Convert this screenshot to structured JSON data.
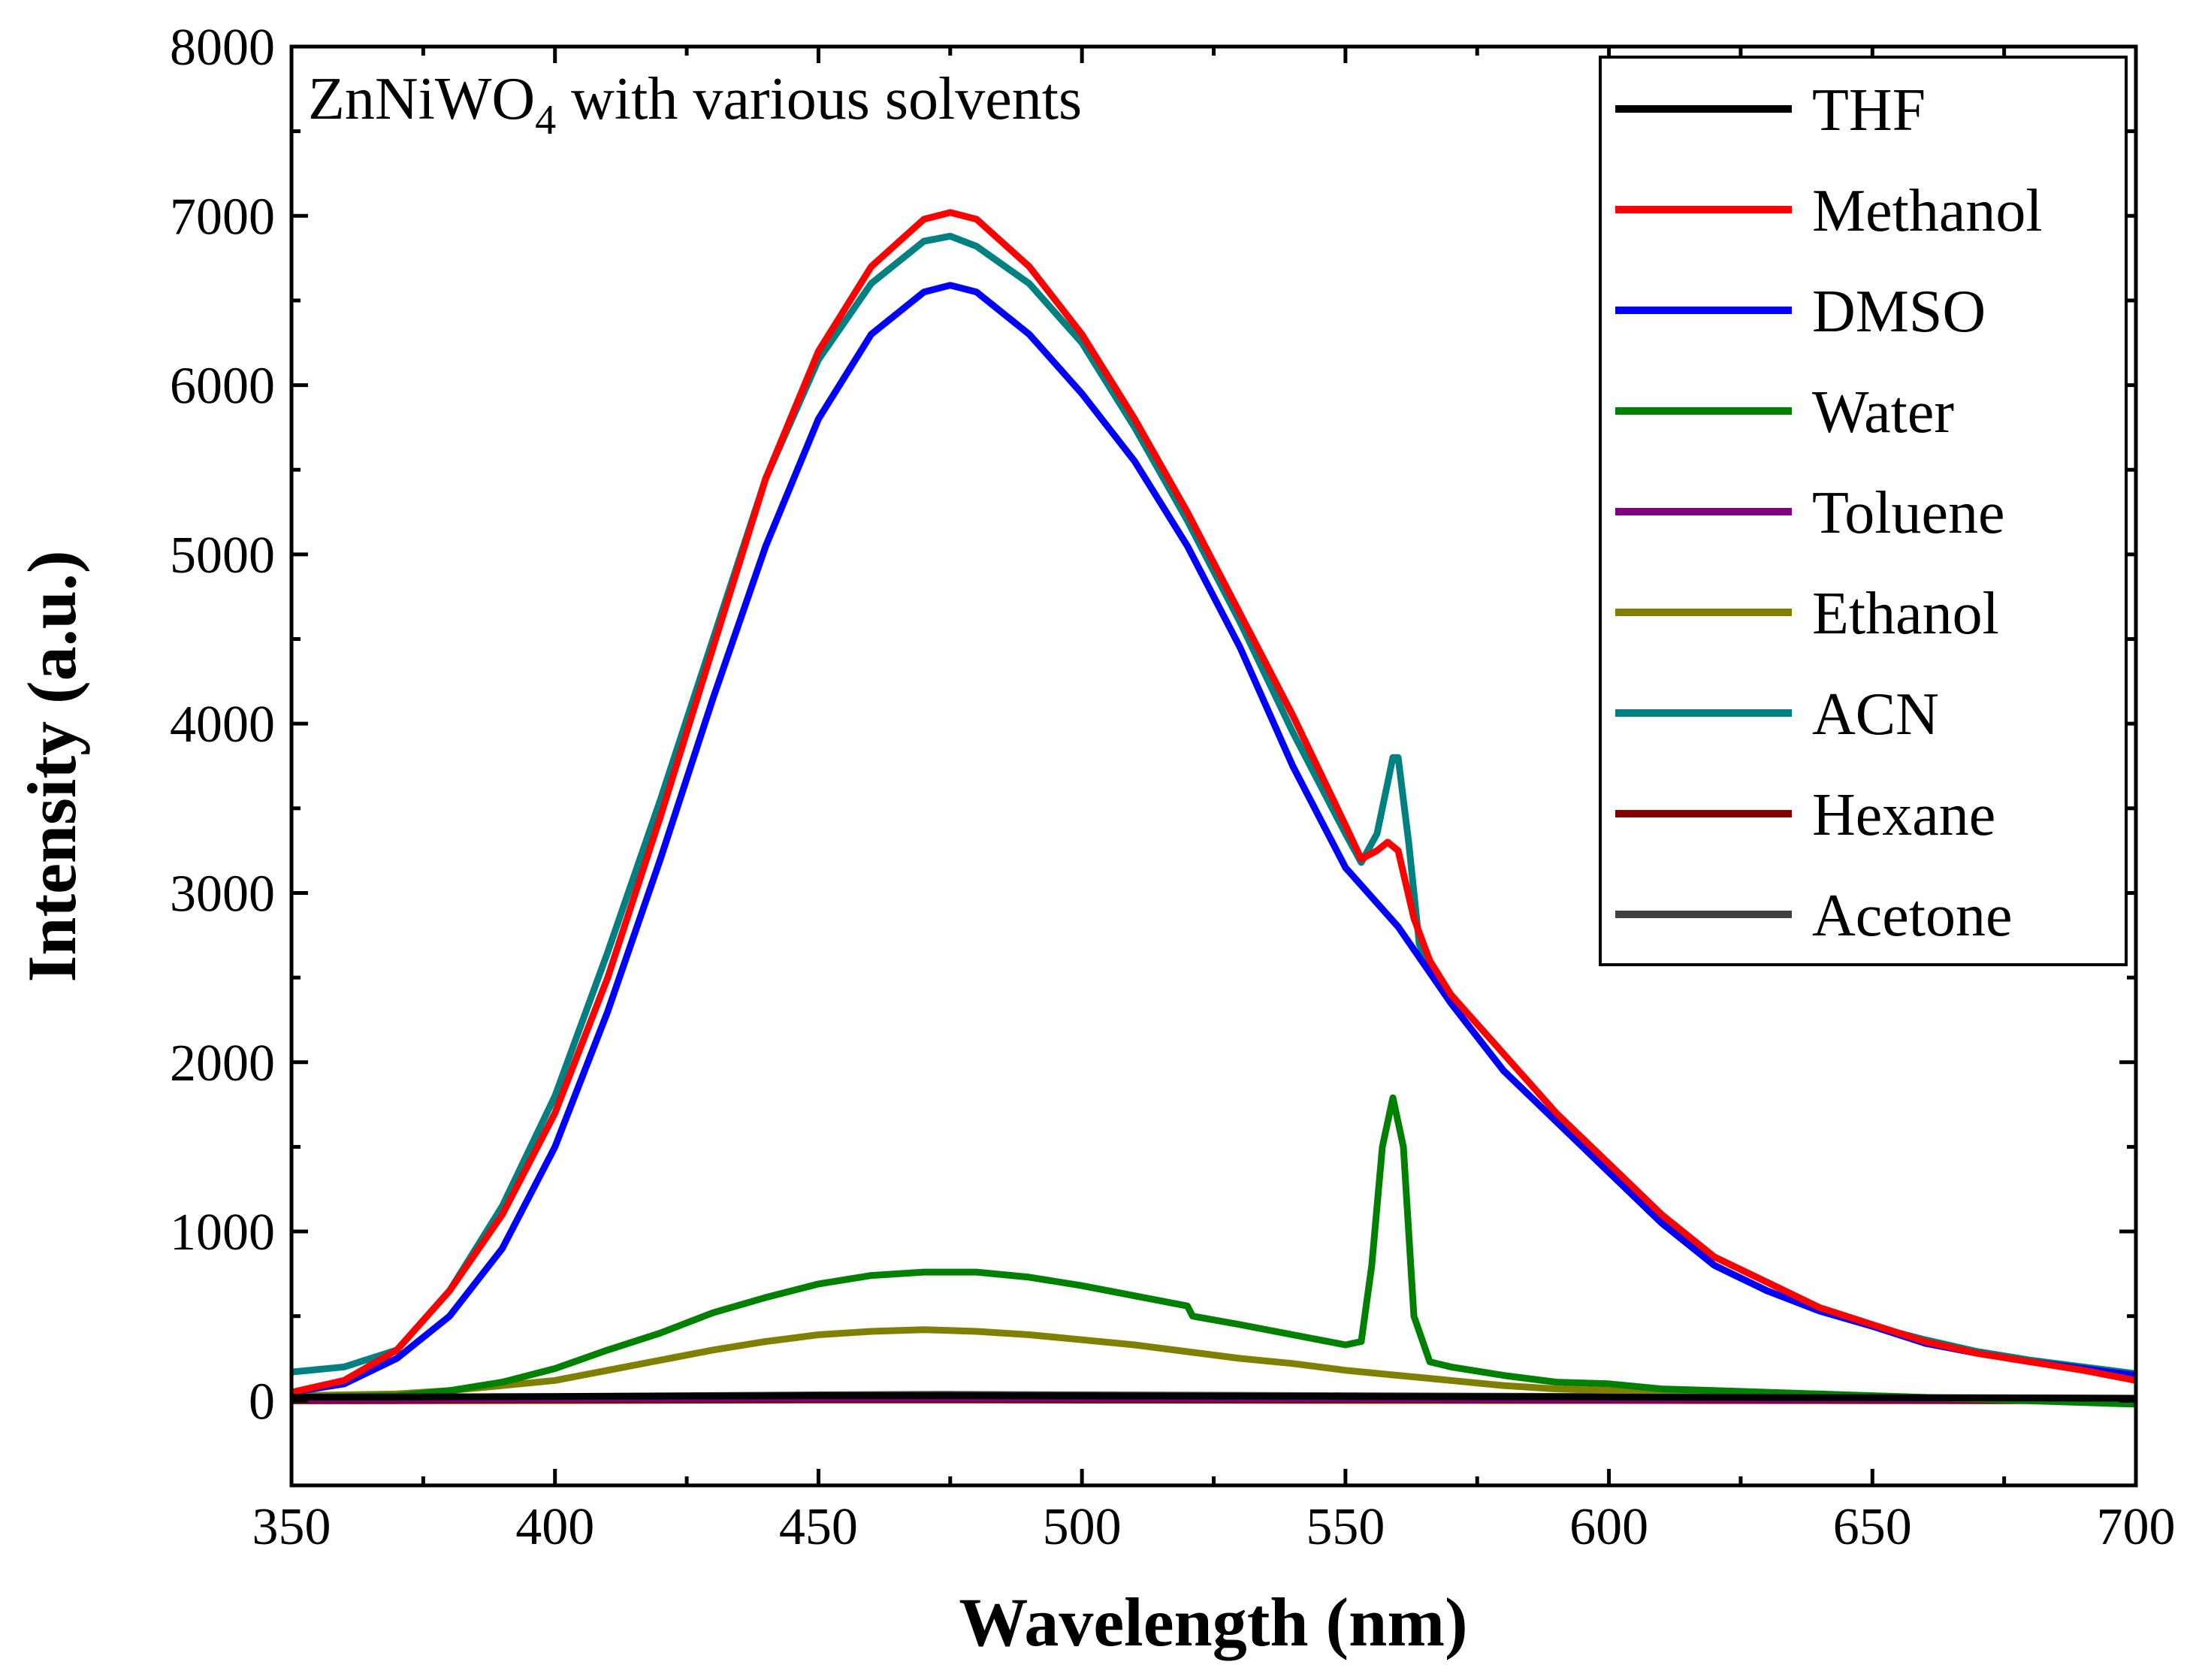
{
  "chart_data": {
    "type": "line",
    "title": "",
    "annotation": {
      "text": "ZnNiWO",
      "subscript": "4",
      "suffix": " with various solvents"
    },
    "xlabel": "Wavelength (nm)",
    "ylabel": "Intensity (a.u.)",
    "xlim": [
      350,
      700
    ],
    "ylim": [
      -500,
      8000
    ],
    "xticks": [
      350,
      400,
      450,
      500,
      550,
      600,
      650,
      700
    ],
    "yticks": [
      0,
      1000,
      2000,
      3000,
      4000,
      5000,
      6000,
      7000,
      8000
    ],
    "grid": false,
    "legend_position": "top-right",
    "series": [
      {
        "name": "THF",
        "color": "#000000",
        "x": [
          350,
          400,
          450,
          475,
          500,
          550,
          600,
          650,
          700
        ],
        "y": [
          20,
          25,
          30,
          30,
          28,
          25,
          22,
          18,
          15
        ]
      },
      {
        "name": "Methanol",
        "color": "#ff0000",
        "x": [
          350,
          360,
          370,
          380,
          390,
          400,
          410,
          420,
          430,
          440,
          450,
          460,
          470,
          475,
          480,
          490,
          500,
          510,
          520,
          530,
          540,
          550,
          553,
          556,
          558,
          560,
          563,
          566,
          570,
          580,
          590,
          600,
          610,
          620,
          630,
          640,
          650,
          660,
          670,
          680,
          690,
          700
        ],
        "y": [
          50,
          120,
          300,
          650,
          1100,
          1700,
          2500,
          3450,
          4450,
          5450,
          6200,
          6700,
          6980,
          7020,
          6980,
          6700,
          6300,
          5800,
          5250,
          4650,
          4050,
          3400,
          3200,
          3250,
          3300,
          3250,
          2850,
          2600,
          2400,
          2050,
          1700,
          1400,
          1100,
          850,
          700,
          550,
          450,
          350,
          280,
          230,
          180,
          120
        ]
      },
      {
        "name": "DMSO",
        "color": "#0000ff",
        "x": [
          350,
          360,
          370,
          380,
          390,
          400,
          410,
          420,
          430,
          440,
          450,
          460,
          470,
          475,
          480,
          490,
          500,
          510,
          520,
          530,
          540,
          550,
          560,
          570,
          580,
          590,
          600,
          610,
          620,
          630,
          640,
          650,
          660,
          670,
          680,
          690,
          700
        ],
        "y": [
          50,
          100,
          250,
          500,
          900,
          1500,
          2300,
          3200,
          4150,
          5050,
          5800,
          6300,
          6550,
          6590,
          6550,
          6300,
          5950,
          5550,
          5050,
          4450,
          3750,
          3150,
          2800,
          2350,
          1950,
          1650,
          1350,
          1050,
          800,
          650,
          530,
          440,
          340,
          280,
          230,
          190,
          150
        ]
      },
      {
        "name": "Water",
        "color": "#008000",
        "x": [
          350,
          370,
          380,
          390,
          400,
          410,
          420,
          430,
          440,
          450,
          460,
          470,
          475,
          480,
          490,
          500,
          510,
          520,
          521,
          530,
          540,
          550,
          553,
          555,
          557,
          559,
          561,
          563,
          566,
          570,
          580,
          590,
          600,
          610,
          620,
          650,
          700
        ],
        "y": [
          20,
          30,
          60,
          110,
          190,
          300,
          400,
          520,
          610,
          690,
          740,
          760,
          760,
          760,
          730,
          680,
          620,
          560,
          500,
          450,
          390,
          330,
          350,
          800,
          1500,
          1790,
          1500,
          500,
          230,
          200,
          150,
          110,
          100,
          70,
          60,
          30,
          -20
        ]
      },
      {
        "name": "Toluene",
        "color": "#800080",
        "x": [
          350,
          400,
          450,
          475,
          500,
          550,
          600,
          650,
          700
        ],
        "y": [
          10,
          12,
          15,
          15,
          14,
          12,
          10,
          9,
          8
        ]
      },
      {
        "name": "Ethanol",
        "color": "#808000",
        "x": [
          350,
          370,
          380,
          390,
          400,
          410,
          420,
          430,
          440,
          450,
          460,
          470,
          480,
          490,
          500,
          510,
          520,
          530,
          540,
          550,
          560,
          570,
          580,
          590,
          600,
          620,
          650,
          700
        ],
        "y": [
          30,
          40,
          60,
          90,
          120,
          180,
          240,
          300,
          350,
          390,
          410,
          420,
          410,
          390,
          360,
          330,
          290,
          250,
          220,
          180,
          150,
          120,
          90,
          70,
          60,
          40,
          20,
          10
        ]
      },
      {
        "name": "ACN",
        "color": "#008080",
        "x": [
          350,
          360,
          370,
          380,
          390,
          400,
          410,
          420,
          430,
          440,
          450,
          460,
          470,
          475,
          480,
          490,
          500,
          510,
          520,
          530,
          540,
          550,
          553,
          556,
          558,
          559,
          560,
          562,
          564,
          566,
          570,
          580,
          590,
          600,
          610,
          620,
          630,
          640,
          650,
          660,
          670,
          680,
          690,
          700
        ],
        "y": [
          170,
          200,
          300,
          650,
          1150,
          1800,
          2650,
          3550,
          4500,
          5450,
          6150,
          6600,
          6850,
          6880,
          6820,
          6600,
          6250,
          5750,
          5200,
          4600,
          3950,
          3350,
          3180,
          3350,
          3650,
          3800,
          3800,
          3300,
          2700,
          2550,
          2350,
          1950,
          1650,
          1350,
          1050,
          800,
          650,
          530,
          440,
          360,
          290,
          240,
          200,
          160
        ]
      },
      {
        "name": "Hexane",
        "color": "#800000",
        "x": [
          350,
          400,
          450,
          475,
          500,
          550,
          600,
          650,
          700
        ],
        "y": [
          0,
          2,
          5,
          5,
          4,
          3,
          2,
          1,
          0
        ]
      },
      {
        "name": "Acetone",
        "color": "#404040",
        "x": [
          350,
          400,
          450,
          475,
          500,
          550,
          600,
          650,
          700
        ],
        "y": [
          20,
          25,
          35,
          38,
          35,
          30,
          25,
          20,
          15
        ]
      }
    ]
  }
}
